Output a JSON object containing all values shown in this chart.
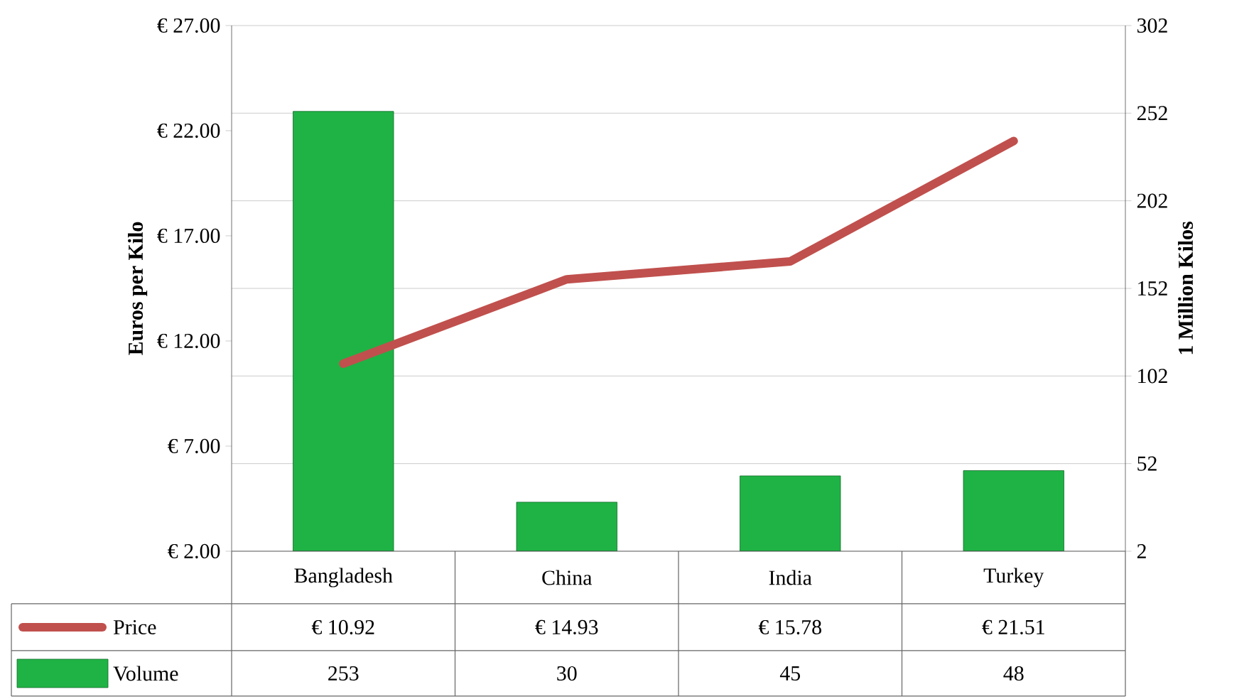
{
  "chart_data": {
    "type": "bar",
    "categories": [
      "Bangladesh",
      "China",
      "India",
      "Turkey"
    ],
    "series": [
      {
        "name": "Price",
        "type": "line",
        "color": "#c0504d",
        "values": [
          10.92,
          14.93,
          15.78,
          21.51
        ],
        "value_labels": [
          "€ 10.92",
          "€ 14.93",
          "€ 15.78",
          "€ 21.51"
        ]
      },
      {
        "name": "Volume",
        "axis": "y2",
        "color": "#1fb345",
        "values": [
          253,
          30,
          45,
          48
        ],
        "value_labels": [
          "253",
          "30",
          "45",
          "48"
        ]
      }
    ],
    "ylabel": "Euros per Kilo",
    "y2label": "1 Million Kilos",
    "ylim": [
      2,
      27
    ],
    "yticks": [
      {
        "value": 2,
        "label": "€ 2.00"
      },
      {
        "value": 7,
        "label": "€ 7.00"
      },
      {
        "value": 12,
        "label": "€ 12.00"
      },
      {
        "value": 17,
        "label": "€ 17.00"
      },
      {
        "value": 22,
        "label": "€ 22.00"
      },
      {
        "value": 27,
        "label": "€ 27.00"
      }
    ],
    "y2lim": [
      2,
      302
    ],
    "y2ticks": [
      2,
      52,
      102,
      152,
      202,
      252,
      302
    ],
    "grid": "y",
    "legend": "bottom left"
  }
}
